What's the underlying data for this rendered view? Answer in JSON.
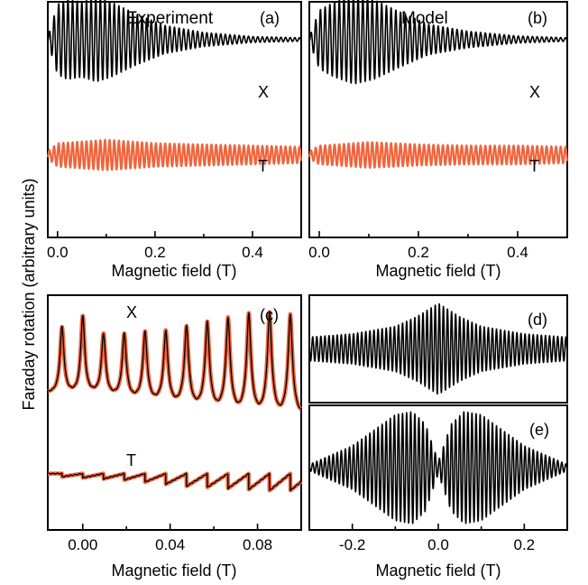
{
  "figure": {
    "ylabel": "Faraday rotation (arbitrary units)"
  },
  "chart_data": [
    {
      "panel": "(a)",
      "title": "Experiment",
      "type": "line",
      "xlabel": "Magnetic field (T)",
      "xlim": [
        -0.02,
        0.5
      ],
      "xticks": [
        "0.0",
        "0.2",
        "0.4"
      ],
      "xtick_values": [
        0.0,
        0.2,
        0.4
      ],
      "ylabel": "",
      "yticks_labeled": false,
      "series": [
        {
          "name": "X",
          "color": "#000000",
          "baseline": 0.68,
          "form": "oscillation_envelope",
          "oscillation_period_T": 0.0095,
          "envelope": [
            [
              -0.02,
              0.02
            ],
            [
              0.0,
              0.3
            ],
            [
              0.02,
              0.34
            ],
            [
              0.05,
              0.32
            ],
            [
              0.08,
              0.36
            ],
            [
              0.11,
              0.32
            ],
            [
              0.16,
              0.22
            ],
            [
              0.22,
              0.12
            ],
            [
              0.3,
              0.06
            ],
            [
              0.4,
              0.025
            ],
            [
              0.5,
              0.015
            ]
          ]
        },
        {
          "name": "T",
          "color": "#F0643C",
          "baseline": -0.3,
          "form": "oscillation_envelope",
          "oscillation_period_T": 0.0095,
          "envelope": [
            [
              -0.02,
              0.03
            ],
            [
              0.0,
              0.1
            ],
            [
              0.1,
              0.13
            ],
            [
              0.2,
              0.1
            ],
            [
              0.3,
              0.09
            ],
            [
              0.4,
              0.08
            ],
            [
              0.5,
              0.07
            ]
          ]
        }
      ],
      "annotations": [
        "X",
        "T"
      ]
    },
    {
      "panel": "(b)",
      "title": "Model",
      "type": "line",
      "xlabel": "Magnetic field (T)",
      "xlim": [
        -0.02,
        0.5
      ],
      "xticks": [
        "0.0",
        "0.2",
        "0.4"
      ],
      "xtick_values": [
        0.0,
        0.2,
        0.4
      ],
      "yticks_labeled": false,
      "series": [
        {
          "name": "X",
          "color": "#000000",
          "baseline": 0.68,
          "form": "oscillation_envelope",
          "oscillation_period_T": 0.0095,
          "envelope": [
            [
              -0.02,
              0.02
            ],
            [
              0.0,
              0.25
            ],
            [
              0.03,
              0.32
            ],
            [
              0.07,
              0.38
            ],
            [
              0.11,
              0.34
            ],
            [
              0.16,
              0.24
            ],
            [
              0.22,
              0.13
            ],
            [
              0.3,
              0.07
            ],
            [
              0.4,
              0.03
            ],
            [
              0.5,
              0.015
            ]
          ]
        },
        {
          "name": "T",
          "color": "#F0643C",
          "baseline": -0.3,
          "form": "oscillation_envelope",
          "oscillation_period_T": 0.0095,
          "envelope": [
            [
              -0.02,
              0.03
            ],
            [
              0.0,
              0.08
            ],
            [
              0.1,
              0.11
            ],
            [
              0.2,
              0.09
            ],
            [
              0.3,
              0.08
            ],
            [
              0.4,
              0.08
            ],
            [
              0.5,
              0.07
            ]
          ]
        }
      ],
      "annotations": [
        "X",
        "T"
      ]
    },
    {
      "panel": "(c)",
      "type": "line",
      "xlabel": "Magnetic field (T)",
      "xlim": [
        -0.016,
        0.1
      ],
      "xticks": [
        "0.00",
        "0.04",
        "0.08"
      ],
      "xtick_values": [
        0.0,
        0.04,
        0.08
      ],
      "yticks_labeled": false,
      "overlay": [
        "experiment (black thin)",
        "model (orange thick)"
      ],
      "series": [
        {
          "name": "X",
          "form": "resonance_peaks",
          "baseline": 0.16,
          "peak_period_T": 0.0095,
          "first_peak_T": -0.0095,
          "peak_heights": [
            0.62,
            0.72,
            0.55,
            0.55,
            0.57,
            0.58,
            0.62,
            0.66,
            0.7,
            0.74,
            0.75,
            0.74
          ],
          "dip_depths": [
            0.01,
            0.01,
            0.03,
            0.05,
            0.07,
            0.09,
            0.11,
            0.13,
            0.15,
            0.16,
            0.17,
            0.17
          ],
          "colors": {
            "experiment": "#000000",
            "model": "#F0643C"
          }
        },
        {
          "name": "T",
          "form": "dip_steps",
          "baseline": -0.52,
          "peak_period_T": 0.0095,
          "step_depths": [
            0.03,
            0.04,
            0.05,
            0.06,
            0.08,
            0.1,
            0.12,
            0.13,
            0.14,
            0.15,
            0.16,
            0.16
          ],
          "colors": {
            "experiment": "#000000",
            "model": "#F0643C"
          }
        }
      ],
      "annotations": [
        "X",
        "T"
      ]
    },
    {
      "panel": "(d)",
      "type": "line",
      "xlim": [
        -0.3,
        0.3
      ],
      "yticks_labeled": false,
      "series": [
        {
          "name": "",
          "color": "#000000",
          "form": "oscillation_envelope",
          "oscillation_period_T": 0.0095,
          "envelope": [
            [
              -0.3,
              0.22
            ],
            [
              -0.2,
              0.28
            ],
            [
              -0.1,
              0.42
            ],
            [
              -0.05,
              0.6
            ],
            [
              0.0,
              0.85
            ],
            [
              0.05,
              0.6
            ],
            [
              0.1,
              0.42
            ],
            [
              0.2,
              0.28
            ],
            [
              0.3,
              0.22
            ]
          ]
        }
      ]
    },
    {
      "panel": "(e)",
      "type": "line",
      "xlabel": "Magnetic field (T)",
      "xlim": [
        -0.3,
        0.3
      ],
      "xticks": [
        "-0.2",
        "0.0",
        "0.2"
      ],
      "xtick_values": [
        -0.2,
        0.0,
        0.2
      ],
      "yticks_labeled": false,
      "series": [
        {
          "name": "",
          "color": "#000000",
          "form": "oscillation_envelope",
          "oscillation_period_T": 0.0095,
          "envelope": [
            [
              -0.3,
              0.05
            ],
            [
              -0.2,
              0.35
            ],
            [
              -0.1,
              0.85
            ],
            [
              -0.06,
              0.9
            ],
            [
              -0.03,
              0.7
            ],
            [
              0.0,
              0.1
            ],
            [
              0.03,
              0.7
            ],
            [
              0.06,
              0.9
            ],
            [
              0.1,
              0.85
            ],
            [
              0.2,
              0.35
            ],
            [
              0.3,
              0.05
            ]
          ]
        }
      ]
    }
  ]
}
